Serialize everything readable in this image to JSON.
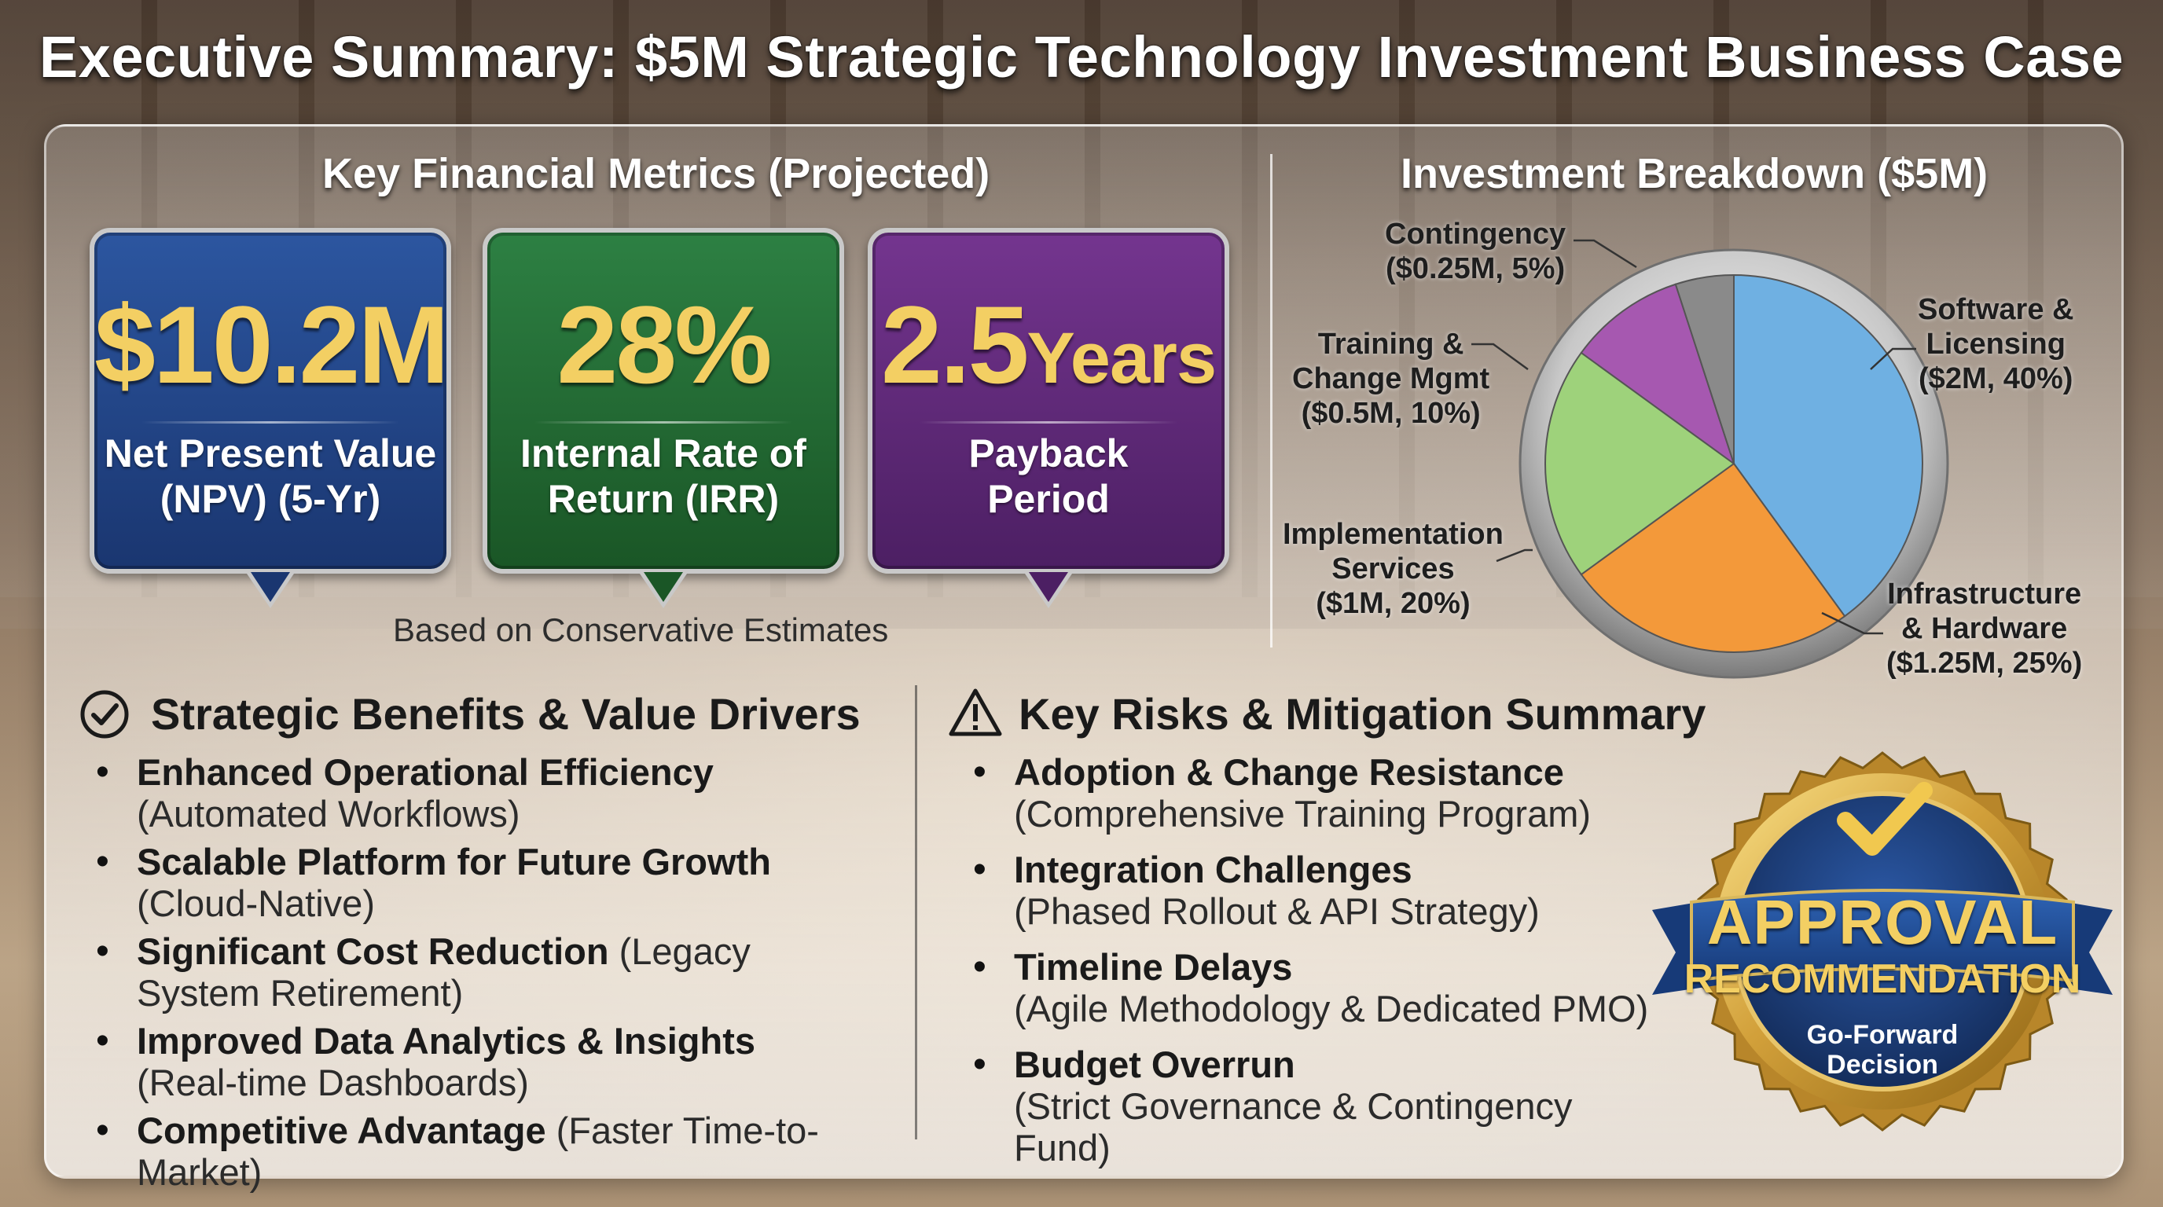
{
  "title": "Executive Summary: $5M Strategic Technology Investment Business Case",
  "metrics": {
    "heading": "Key Financial Metrics (Projected)",
    "cards": [
      {
        "value": "$10.2M",
        "unit": "",
        "label_line1": "Net Present Value",
        "label_line2": "(NPV) (5-Yr)",
        "color": "#1f3f7d"
      },
      {
        "value": "28%",
        "unit": "",
        "label_line1": "Internal Rate of",
        "label_line2": "Return (IRR)",
        "color": "#1f6630"
      },
      {
        "value": "2.5",
        "unit": "Years",
        "label_line1": "Payback",
        "label_line2": "Period",
        "color": "#5b2775"
      }
    ],
    "note": "Based on Conservative Estimates"
  },
  "breakdown": {
    "heading": "Investment Breakdown ($5M)",
    "slices": [
      {
        "name_line1": "Software &",
        "name_line2": "Licensing",
        "amount": "($2M, 40%)",
        "percent": 40,
        "color": "#6fb0e2"
      },
      {
        "name_line1": "Infrastructure",
        "name_line2": "& Hardware",
        "amount": "($1.25M, 25%)",
        "percent": 25,
        "color": "#f3993a"
      },
      {
        "name_line1": "Implementation",
        "name_line2": "Services",
        "amount": "($1M, 20%)",
        "percent": 20,
        "color": "#9ed27b"
      },
      {
        "name_line1": "Training &",
        "name_line2": "Change Mgmt",
        "amount": "($0.5M, 10%)",
        "percent": 10,
        "color": "#a658b0"
      },
      {
        "name_line1": "Contingency",
        "name_line2": "",
        "amount": "($0.25M, 5%)",
        "percent": 5,
        "color": "#8a8a8a"
      }
    ]
  },
  "benefits": {
    "heading": "Strategic Benefits & Value Drivers",
    "items": [
      {
        "bold": "Enhanced Operational Efficiency",
        "normal": "(Automated Workflows)",
        "inline": false
      },
      {
        "bold": "Scalable Platform for Future Growth",
        "normal": "(Cloud-Native)",
        "inline": false
      },
      {
        "bold": "Significant Cost Reduction",
        "normal": "(Legacy System Retirement)",
        "inline": true
      },
      {
        "bold": "Improved Data Analytics & Insights",
        "normal": "(Real-time Dashboards)",
        "inline": false
      },
      {
        "bold": "Competitive Advantage",
        "normal": "(Faster Time-to-Market)",
        "inline": true
      }
    ]
  },
  "risks": {
    "heading": "Key Risks & Mitigation Summary",
    "items": [
      {
        "bold": "Adoption & Change Resistance",
        "normal": "(Comprehensive Training Program)"
      },
      {
        "bold": "Integration Challenges",
        "normal": "(Phased Rollout & API Strategy)"
      },
      {
        "bold": "Timeline Delays",
        "normal": "(Agile Methodology & Dedicated PMO)"
      },
      {
        "bold": "Budget Overrun",
        "normal": "(Strict Governance & Contingency Fund)"
      }
    ]
  },
  "badge": {
    "line1": "APPROVAL",
    "line2": "RECOMMENDATION",
    "line3": "Go-Forward",
    "line4": "Decision"
  },
  "icons": {
    "benefits": "check-circle-icon",
    "risks": "warning-triangle-icon",
    "badge": "checkmark-icon"
  }
}
